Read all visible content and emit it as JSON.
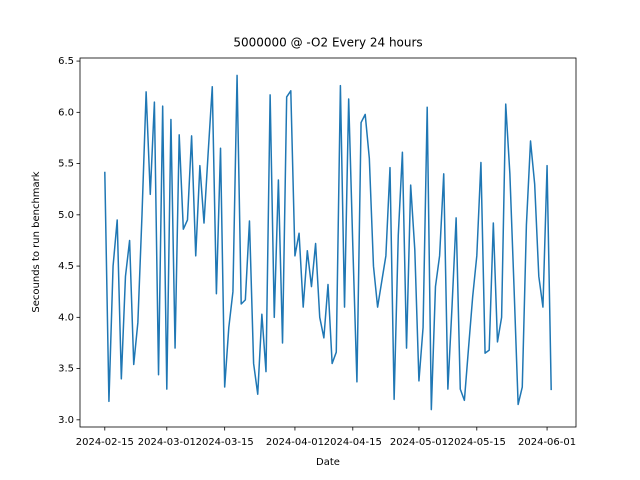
{
  "chart_data": {
    "type": "line",
    "title": "5000000 @ -O2 Every 24 hours",
    "x_label": "Date",
    "y_label": "Secounds to run benchmark",
    "color": "#1f77b4",
    "x": [
      "2024-02-15",
      "2024-02-16",
      "2024-02-17",
      "2024-02-18",
      "2024-02-19",
      "2024-02-20",
      "2024-02-21",
      "2024-02-22",
      "2024-02-23",
      "2024-02-24",
      "2024-02-25",
      "2024-02-26",
      "2024-02-27",
      "2024-02-28",
      "2024-02-29",
      "2024-03-01",
      "2024-03-02",
      "2024-03-03",
      "2024-03-04",
      "2024-03-05",
      "2024-03-06",
      "2024-03-07",
      "2024-03-08",
      "2024-03-09",
      "2024-03-10",
      "2024-03-11",
      "2024-03-12",
      "2024-03-13",
      "2024-03-14",
      "2024-03-15",
      "2024-03-16",
      "2024-03-17",
      "2024-03-18",
      "2024-03-19",
      "2024-03-20",
      "2024-03-21",
      "2024-03-22",
      "2024-03-23",
      "2024-03-24",
      "2024-03-25",
      "2024-03-26",
      "2024-03-27",
      "2024-03-28",
      "2024-03-29",
      "2024-03-30",
      "2024-03-31",
      "2024-04-01",
      "2024-04-02",
      "2024-04-03",
      "2024-04-04",
      "2024-04-05",
      "2024-04-06",
      "2024-04-07",
      "2024-04-08",
      "2024-04-09",
      "2024-04-10",
      "2024-04-11",
      "2024-04-12",
      "2024-04-13",
      "2024-04-14",
      "2024-04-15",
      "2024-04-16",
      "2024-04-17",
      "2024-04-18",
      "2024-04-19",
      "2024-04-20",
      "2024-04-21",
      "2024-04-22",
      "2024-04-23",
      "2024-04-24",
      "2024-04-25",
      "2024-04-26",
      "2024-04-27",
      "2024-04-28",
      "2024-04-29",
      "2024-04-30",
      "2024-05-01",
      "2024-05-02",
      "2024-05-03",
      "2024-05-04",
      "2024-05-05",
      "2024-05-06",
      "2024-05-07",
      "2024-05-08",
      "2024-05-09",
      "2024-05-10",
      "2024-05-11",
      "2024-05-12",
      "2024-05-13",
      "2024-05-14",
      "2024-05-15",
      "2024-05-16",
      "2024-05-17",
      "2024-05-18",
      "2024-05-19",
      "2024-05-20",
      "2024-05-21",
      "2024-05-22",
      "2024-05-23",
      "2024-05-24",
      "2024-05-25",
      "2024-05-26",
      "2024-05-27",
      "2024-05-28",
      "2024-05-29",
      "2024-05-30",
      "2024-05-31",
      "2024-06-01",
      "2024-06-02"
    ],
    "values": [
      5.42,
      3.18,
      4.5,
      4.95,
      3.4,
      4.4,
      4.75,
      3.54,
      3.95,
      5.0,
      6.2,
      5.2,
      6.1,
      3.44,
      6.06,
      3.3,
      5.93,
      3.7,
      5.78,
      4.86,
      4.95,
      5.77,
      4.6,
      5.48,
      4.92,
      5.6,
      6.25,
      4.23,
      5.65,
      3.32,
      3.9,
      4.25,
      6.36,
      4.13,
      4.17,
      4.94,
      3.55,
      3.25,
      4.03,
      3.47,
      6.17,
      4.0,
      5.34,
      3.75,
      6.15,
      6.21,
      4.6,
      4.82,
      4.1,
      4.65,
      4.3,
      4.72,
      4.0,
      3.8,
      4.32,
      3.55,
      3.66,
      6.26,
      4.1,
      6.13,
      4.7,
      3.37,
      5.9,
      5.98,
      5.55,
      4.5,
      4.1,
      4.35,
      4.6,
      5.46,
      3.2,
      4.8,
      5.61,
      3.7,
      5.29,
      4.66,
      3.38,
      3.9,
      6.05,
      3.1,
      4.3,
      4.6,
      5.4,
      3.3,
      4.1,
      4.97,
      3.3,
      3.19,
      3.7,
      4.2,
      4.6,
      5.51,
      3.65,
      3.68,
      4.92,
      3.76,
      4.0,
      6.08,
      5.4,
      4.3,
      3.15,
      3.32,
      4.9,
      5.72,
      5.3,
      4.4,
      4.1,
      5.48,
      3.29
    ],
    "xlim": [
      "2024-02-09",
      "2024-06-08"
    ],
    "xticks": [
      "2024-02-15",
      "2024-03-01",
      "2024-03-15",
      "2024-04-01",
      "2024-04-15",
      "2024-05-01",
      "2024-05-15",
      "2024-06-01"
    ],
    "ylim": [
      2.93,
      6.53
    ],
    "yticks": [
      {
        "value": 3,
        "label": "3.0"
      },
      3.5,
      {
        "value": 4,
        "label": "4.0"
      },
      4.5,
      {
        "value": 5,
        "label": "5.0"
      },
      5.5,
      {
        "value": 6,
        "label": "6.0"
      },
      6.5
    ]
  }
}
